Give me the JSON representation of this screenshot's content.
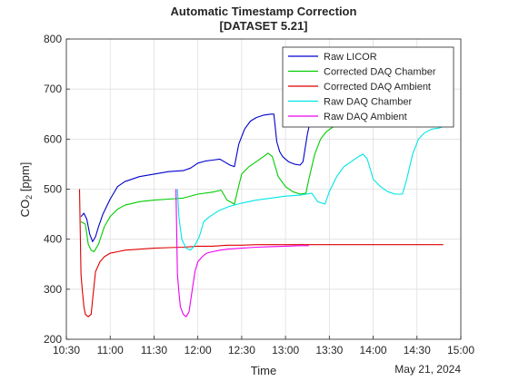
{
  "chart_data": {
    "type": "line",
    "title": "Automatic Timestamp Correction",
    "subtitle": "[DATASET 5.21]",
    "xlabel": "Time",
    "ylabel_main": "CO",
    "ylabel_sub": "2",
    "ylabel_unit": " [ppm]",
    "date_label": "May 21, 2024",
    "xlim": [
      "10:30",
      "15:00"
    ],
    "ylim": [
      200,
      800
    ],
    "x_ticks": [
      "10:30",
      "11:00",
      "11:30",
      "12:00",
      "12:30",
      "13:00",
      "13:30",
      "14:00",
      "14:30",
      "15:00"
    ],
    "y_ticks": [
      200,
      300,
      400,
      500,
      600,
      700,
      800
    ],
    "grid": true,
    "legend_position": "top-right",
    "series": [
      {
        "name": "Raw LICOR",
        "color": "#0000cc",
        "points": [
          [
            "10:40",
            445
          ],
          [
            "10:42",
            452
          ],
          [
            "10:44",
            440
          ],
          [
            "10:46",
            410
          ],
          [
            "10:48",
            395
          ],
          [
            "10:50",
            405
          ],
          [
            "10:52",
            425
          ],
          [
            "10:55",
            450
          ],
          [
            "11:00",
            480
          ],
          [
            "11:05",
            505
          ],
          [
            "11:10",
            515
          ],
          [
            "11:20",
            525
          ],
          [
            "11:30",
            530
          ],
          [
            "11:40",
            535
          ],
          [
            "11:50",
            537
          ],
          [
            "11:55",
            542
          ],
          [
            "12:00",
            552
          ],
          [
            "12:05",
            556
          ],
          [
            "12:10",
            558
          ],
          [
            "12:15",
            560
          ],
          [
            "12:18",
            555
          ],
          [
            "12:22",
            548
          ],
          [
            "12:25",
            545
          ],
          [
            "12:26",
            560
          ],
          [
            "12:28",
            590
          ],
          [
            "12:32",
            620
          ],
          [
            "12:36",
            636
          ],
          [
            "12:40",
            643
          ],
          [
            "12:45",
            648
          ],
          [
            "12:50",
            650
          ],
          [
            "12:52",
            650
          ],
          [
            "12:54",
            595
          ],
          [
            "12:56",
            575
          ],
          [
            "12:58",
            565
          ],
          [
            "13:02",
            555
          ],
          [
            "13:06",
            550
          ],
          [
            "13:10",
            548
          ],
          [
            "13:12",
            555
          ],
          [
            "13:15",
            610
          ],
          [
            "13:18",
            650
          ]
        ]
      },
      {
        "name": "Corrected DAQ Chamber",
        "color": "#00cc00",
        "points": [
          [
            "10:40",
            435
          ],
          [
            "10:43",
            430
          ],
          [
            "10:45",
            390
          ],
          [
            "10:47",
            378
          ],
          [
            "10:49",
            375
          ],
          [
            "10:52",
            390
          ],
          [
            "10:56",
            425
          ],
          [
            "11:00",
            445
          ],
          [
            "11:05",
            460
          ],
          [
            "11:10",
            468
          ],
          [
            "11:20",
            475
          ],
          [
            "11:30",
            478
          ],
          [
            "11:40",
            480
          ],
          [
            "11:50",
            482
          ],
          [
            "12:00",
            490
          ],
          [
            "12:10",
            494
          ],
          [
            "12:16",
            498
          ],
          [
            "12:20",
            478
          ],
          [
            "12:25",
            470
          ],
          [
            "12:27",
            495
          ],
          [
            "12:30",
            530
          ],
          [
            "12:35",
            545
          ],
          [
            "12:40",
            555
          ],
          [
            "12:45",
            565
          ],
          [
            "12:48",
            572
          ],
          [
            "12:51",
            565
          ],
          [
            "12:55",
            525
          ],
          [
            "13:00",
            505
          ],
          [
            "13:05",
            495
          ],
          [
            "13:10",
            490
          ],
          [
            "13:14",
            492
          ],
          [
            "13:16",
            520
          ],
          [
            "13:20",
            570
          ],
          [
            "13:24",
            600
          ],
          [
            "13:28",
            615
          ],
          [
            "13:33",
            625
          ],
          [
            "13:38",
            640
          ],
          [
            "13:45",
            650
          ]
        ]
      },
      {
        "name": "Corrected DAQ Ambient",
        "color": "#dd0000",
        "points": [
          [
            "10:39",
            500
          ],
          [
            "10:40",
            330
          ],
          [
            "10:41",
            295
          ],
          [
            "10:42",
            265
          ],
          [
            "10:43",
            250
          ],
          [
            "10:45",
            245
          ],
          [
            "10:47",
            250
          ],
          [
            "10:48",
            280
          ],
          [
            "10:50",
            335
          ],
          [
            "10:53",
            355
          ],
          [
            "10:56",
            365
          ],
          [
            "11:00",
            372
          ],
          [
            "11:05",
            375
          ],
          [
            "11:10",
            378
          ],
          [
            "11:20",
            380
          ],
          [
            "11:30",
            382
          ],
          [
            "11:40",
            383
          ],
          [
            "11:50",
            384
          ],
          [
            "12:00",
            386
          ],
          [
            "12:10",
            386
          ],
          [
            "12:20",
            388
          ],
          [
            "12:30",
            388
          ],
          [
            "12:40",
            389
          ],
          [
            "12:50",
            389
          ],
          [
            "13:00",
            389
          ],
          [
            "13:10",
            389
          ],
          [
            "13:20",
            389
          ],
          [
            "13:30",
            389
          ],
          [
            "13:40",
            389
          ],
          [
            "13:50",
            389
          ],
          [
            "14:00",
            389
          ],
          [
            "14:10",
            389
          ],
          [
            "14:20",
            389
          ],
          [
            "14:30",
            389
          ],
          [
            "14:40",
            389
          ],
          [
            "14:48",
            389
          ]
        ]
      },
      {
        "name": "Raw DAQ Chamber",
        "color": "#00e5e5",
        "points": [
          [
            "11:46",
            500
          ],
          [
            "11:47",
            445
          ],
          [
            "11:49",
            400
          ],
          [
            "11:52",
            382
          ],
          [
            "11:55",
            378
          ],
          [
            "11:58",
            388
          ],
          [
            "12:01",
            405
          ],
          [
            "12:04",
            435
          ],
          [
            "12:08",
            445
          ],
          [
            "12:15",
            458
          ],
          [
            "12:22",
            466
          ],
          [
            "12:30",
            472
          ],
          [
            "12:40",
            478
          ],
          [
            "12:50",
            482
          ],
          [
            "13:00",
            486
          ],
          [
            "13:10",
            488
          ],
          [
            "13:18",
            492
          ],
          [
            "13:22",
            475
          ],
          [
            "13:27",
            470
          ],
          [
            "13:30",
            495
          ],
          [
            "13:35",
            525
          ],
          [
            "13:40",
            545
          ],
          [
            "13:45",
            555
          ],
          [
            "13:50",
            565
          ],
          [
            "13:53",
            570
          ],
          [
            "13:56",
            560
          ],
          [
            "14:00",
            520
          ],
          [
            "14:05",
            505
          ],
          [
            "14:10",
            495
          ],
          [
            "14:15",
            490
          ],
          [
            "14:20",
            490
          ],
          [
            "14:23",
            520
          ],
          [
            "14:27",
            570
          ],
          [
            "14:31",
            600
          ],
          [
            "14:35",
            612
          ],
          [
            "14:40",
            620
          ],
          [
            "14:45",
            622
          ],
          [
            "14:48",
            625
          ]
        ]
      },
      {
        "name": "Raw DAQ Ambient",
        "color": "#ee00ee",
        "points": [
          [
            "11:45",
            500
          ],
          [
            "11:46",
            330
          ],
          [
            "11:47",
            295
          ],
          [
            "11:48",
            265
          ],
          [
            "11:50",
            250
          ],
          [
            "11:52",
            245
          ],
          [
            "11:54",
            255
          ],
          [
            "11:56",
            295
          ],
          [
            "11:58",
            335
          ],
          [
            "12:00",
            355
          ],
          [
            "12:03",
            365
          ],
          [
            "12:06",
            372
          ],
          [
            "12:10",
            375
          ],
          [
            "12:15",
            378
          ],
          [
            "12:20",
            380
          ],
          [
            "12:30",
            382
          ],
          [
            "12:40",
            384
          ],
          [
            "12:50",
            385
          ],
          [
            "13:00",
            386
          ],
          [
            "13:10",
            387
          ],
          [
            "13:16",
            387
          ]
        ]
      }
    ]
  }
}
